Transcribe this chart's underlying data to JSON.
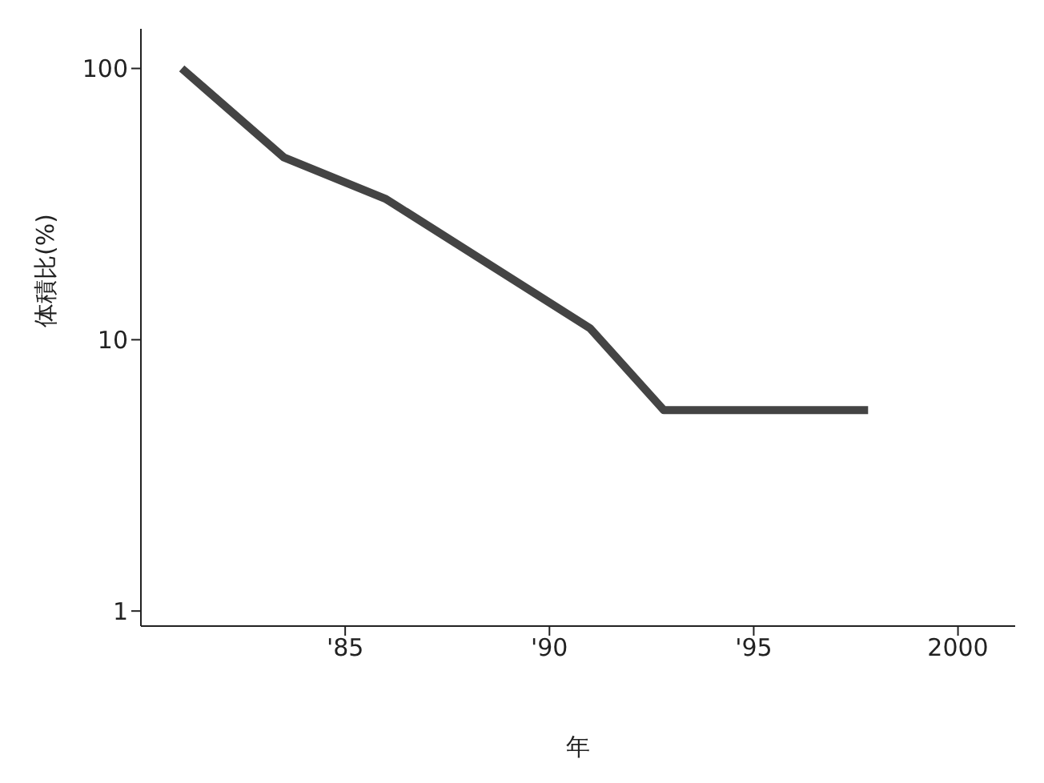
{
  "chart_data": {
    "type": "line",
    "xlabel": "年",
    "ylabel": "体積比(%)",
    "x": [
      1981,
      1983.5,
      1986,
      1991,
      1992.8,
      1997.8
    ],
    "series": [
      {
        "color": "#444444",
        "values": [
          100,
          47,
          33,
          11,
          5.5,
          5.5
        ]
      }
    ],
    "xlim": [
      1980,
      2001.4
    ],
    "xticks": [
      {
        "value": 1985,
        "label": "'85"
      },
      {
        "value": 1990,
        "label": "'90"
      },
      {
        "value": 1995,
        "label": "'95"
      },
      2000
    ],
    "ylim": [
      0.88,
      140
    ],
    "yticks": [
      1,
      10,
      100
    ],
    "log": true,
    "grid": false,
    "marker": "none",
    "line_style": "solid"
  }
}
